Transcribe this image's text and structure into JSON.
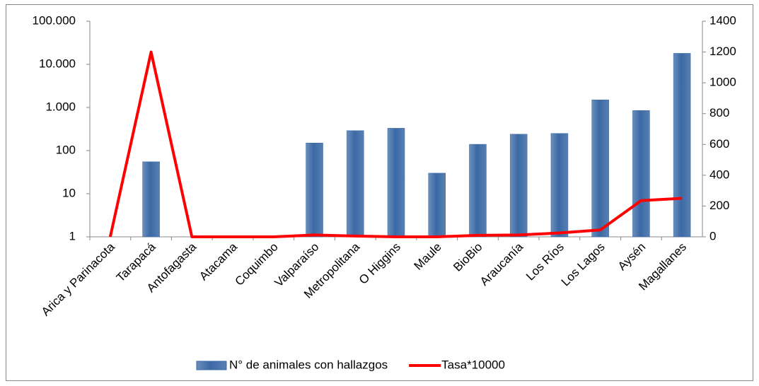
{
  "chart_data": {
    "type": "bar-line",
    "categories": [
      "Arica y Parinacota",
      "Tarapacá",
      "Antofagasta",
      "Atacama",
      "Coquimbo",
      "Valparaíso",
      "Metropolitana",
      "O Higgins",
      "Maule",
      "BioBio",
      "Araucanía",
      "Los Ríos",
      "Los Lagos",
      "Aysén",
      "Magallanes"
    ],
    "series": [
      {
        "name": "N° de animales con hallazgos",
        "type": "bar",
        "color": "#3b69a5",
        "values": [
          null,
          55,
          null,
          null,
          null,
          150,
          290,
          330,
          30,
          140,
          240,
          250,
          1500,
          850,
          18000
        ]
      },
      {
        "name": "Tasa*10000",
        "type": "line",
        "axis": "y2",
        "color": "#ff0000",
        "values": [
          0,
          1200,
          0,
          0,
          0,
          12,
          5,
          0,
          0,
          10,
          12,
          25,
          45,
          235,
          250
        ]
      }
    ],
    "ylog": true,
    "ylim": [
      1,
      100000
    ],
    "yticks": [
      1,
      10,
      100,
      {
        "value": 1000,
        "label": "1.000"
      },
      {
        "value": 10000,
        "label": "10.000"
      },
      {
        "value": 100000,
        "label": "100.000"
      }
    ],
    "y2lim": [
      0,
      1400
    ],
    "y2ticks": [
      0,
      200,
      400,
      600,
      800,
      1000,
      1200,
      1400
    ],
    "legend": "bottom"
  }
}
